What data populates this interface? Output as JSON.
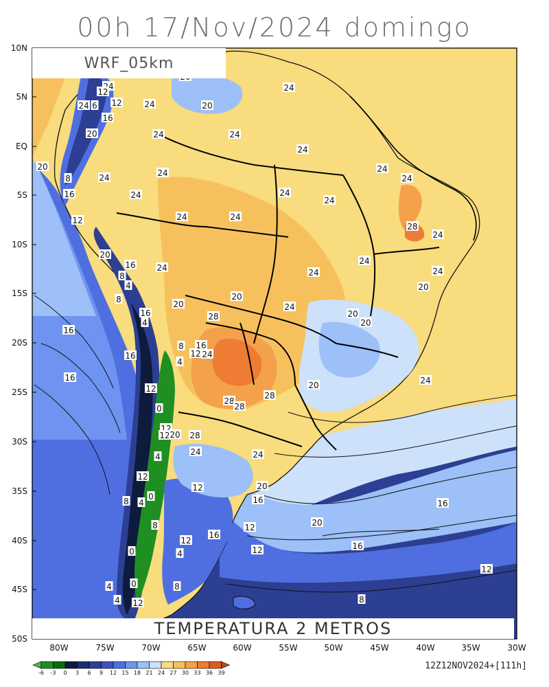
{
  "title": "00h 17/Nov/2024 domingo",
  "model": "WRF_05km",
  "field": "TEMPERATURA 2 METROS",
  "valid": "12Z12NOV2024+[111h]",
  "lat_labels": [
    "10N",
    "5N",
    "EQ",
    "5S",
    "10S",
    "15S",
    "20S",
    "25S",
    "30S",
    "35S",
    "40S",
    "45S",
    "50S"
  ],
  "lon_labels": [
    "80W",
    "75W",
    "70W",
    "65W",
    "60W",
    "55W",
    "50W",
    "45W",
    "40W",
    "35W",
    "30W"
  ],
  "colorbar": {
    "ticks": [
      "-6",
      "-3",
      "0",
      "3",
      "6",
      "9",
      "12",
      "15",
      "18",
      "21",
      "24",
      "27",
      "30",
      "33",
      "36",
      "39"
    ],
    "colors": [
      "#4db548",
      "#1f8f22",
      "#0b6b12",
      "#0d1b3d",
      "#1e2e6e",
      "#2d3f92",
      "#3b52b8",
      "#4f6fe0",
      "#6e93f0",
      "#9cc0f7",
      "#cde1fb",
      "#f8dc7d",
      "#f6c15d",
      "#f3a24b",
      "#ee7c33",
      "#e15a1d",
      "#a9511e"
    ]
  },
  "contour_labels": [
    {
      "text": "24"
    },
    {
      "text": "12"
    },
    {
      "text": "24"
    },
    {
      "text": "6"
    },
    {
      "text": "12"
    },
    {
      "text": "16"
    },
    {
      "text": "24"
    },
    {
      "text": "20"
    },
    {
      "text": "20"
    },
    {
      "text": "24"
    },
    {
      "text": "24"
    },
    {
      "text": "24"
    },
    {
      "text": "24"
    },
    {
      "text": "20"
    },
    {
      "text": "8"
    },
    {
      "text": "24"
    },
    {
      "text": "24"
    },
    {
      "text": "16"
    },
    {
      "text": "24"
    },
    {
      "text": "24"
    },
    {
      "text": "24"
    },
    {
      "text": "12"
    },
    {
      "text": "24"
    },
    {
      "text": "24"
    },
    {
      "text": "28"
    },
    {
      "text": "24"
    },
    {
      "text": "20"
    },
    {
      "text": "24"
    },
    {
      "text": "16"
    },
    {
      "text": "24"
    },
    {
      "text": "24"
    },
    {
      "text": "24"
    },
    {
      "text": "8"
    },
    {
      "text": "4"
    },
    {
      "text": "20"
    },
    {
      "text": "24"
    },
    {
      "text": "20"
    },
    {
      "text": "8"
    },
    {
      "text": "24"
    },
    {
      "text": "20"
    },
    {
      "text": "16"
    },
    {
      "text": "4"
    },
    {
      "text": "28"
    },
    {
      "text": "8"
    },
    {
      "text": "16"
    },
    {
      "text": "16"
    },
    {
      "text": "12"
    },
    {
      "text": "24"
    },
    {
      "text": "20"
    },
    {
      "text": "4"
    },
    {
      "text": "16"
    },
    {
      "text": "16"
    },
    {
      "text": "12"
    },
    {
      "text": "20"
    },
    {
      "text": "24"
    },
    {
      "text": "20"
    },
    {
      "text": "28"
    },
    {
      "text": "28"
    },
    {
      "text": "28"
    },
    {
      "text": "24"
    },
    {
      "text": "0"
    },
    {
      "text": "12"
    },
    {
      "text": "12"
    },
    {
      "text": "20"
    },
    {
      "text": "28"
    },
    {
      "text": "24"
    },
    {
      "text": "20"
    },
    {
      "text": "4"
    },
    {
      "text": "24"
    },
    {
      "text": "12"
    },
    {
      "text": "12"
    },
    {
      "text": "20"
    },
    {
      "text": "0"
    },
    {
      "text": "8"
    },
    {
      "text": "4"
    },
    {
      "text": "16"
    },
    {
      "text": "16"
    },
    {
      "text": "20"
    },
    {
      "text": "8"
    },
    {
      "text": "12"
    },
    {
      "text": "16"
    },
    {
      "text": "12"
    },
    {
      "text": "0"
    },
    {
      "text": "4"
    },
    {
      "text": "12"
    },
    {
      "text": "16"
    },
    {
      "text": "8"
    },
    {
      "text": "0"
    },
    {
      "text": "12"
    },
    {
      "text": "4"
    },
    {
      "text": "4"
    },
    {
      "text": "12"
    },
    {
      "text": "8"
    }
  ],
  "colors": {
    "ocean_deep": "#2d3f92",
    "ocean_mid": "#3b52b8",
    "ocean_light": "#4f6fe0",
    "cool": "#9cc0f7",
    "warm_land": "#f8dc7d",
    "hot_land": "#f6c15d",
    "hotter": "#f3a24b",
    "hottest": "#ee7c33",
    "andes_dark": "#0d1b3d",
    "andes_green": "#1f8f22"
  }
}
